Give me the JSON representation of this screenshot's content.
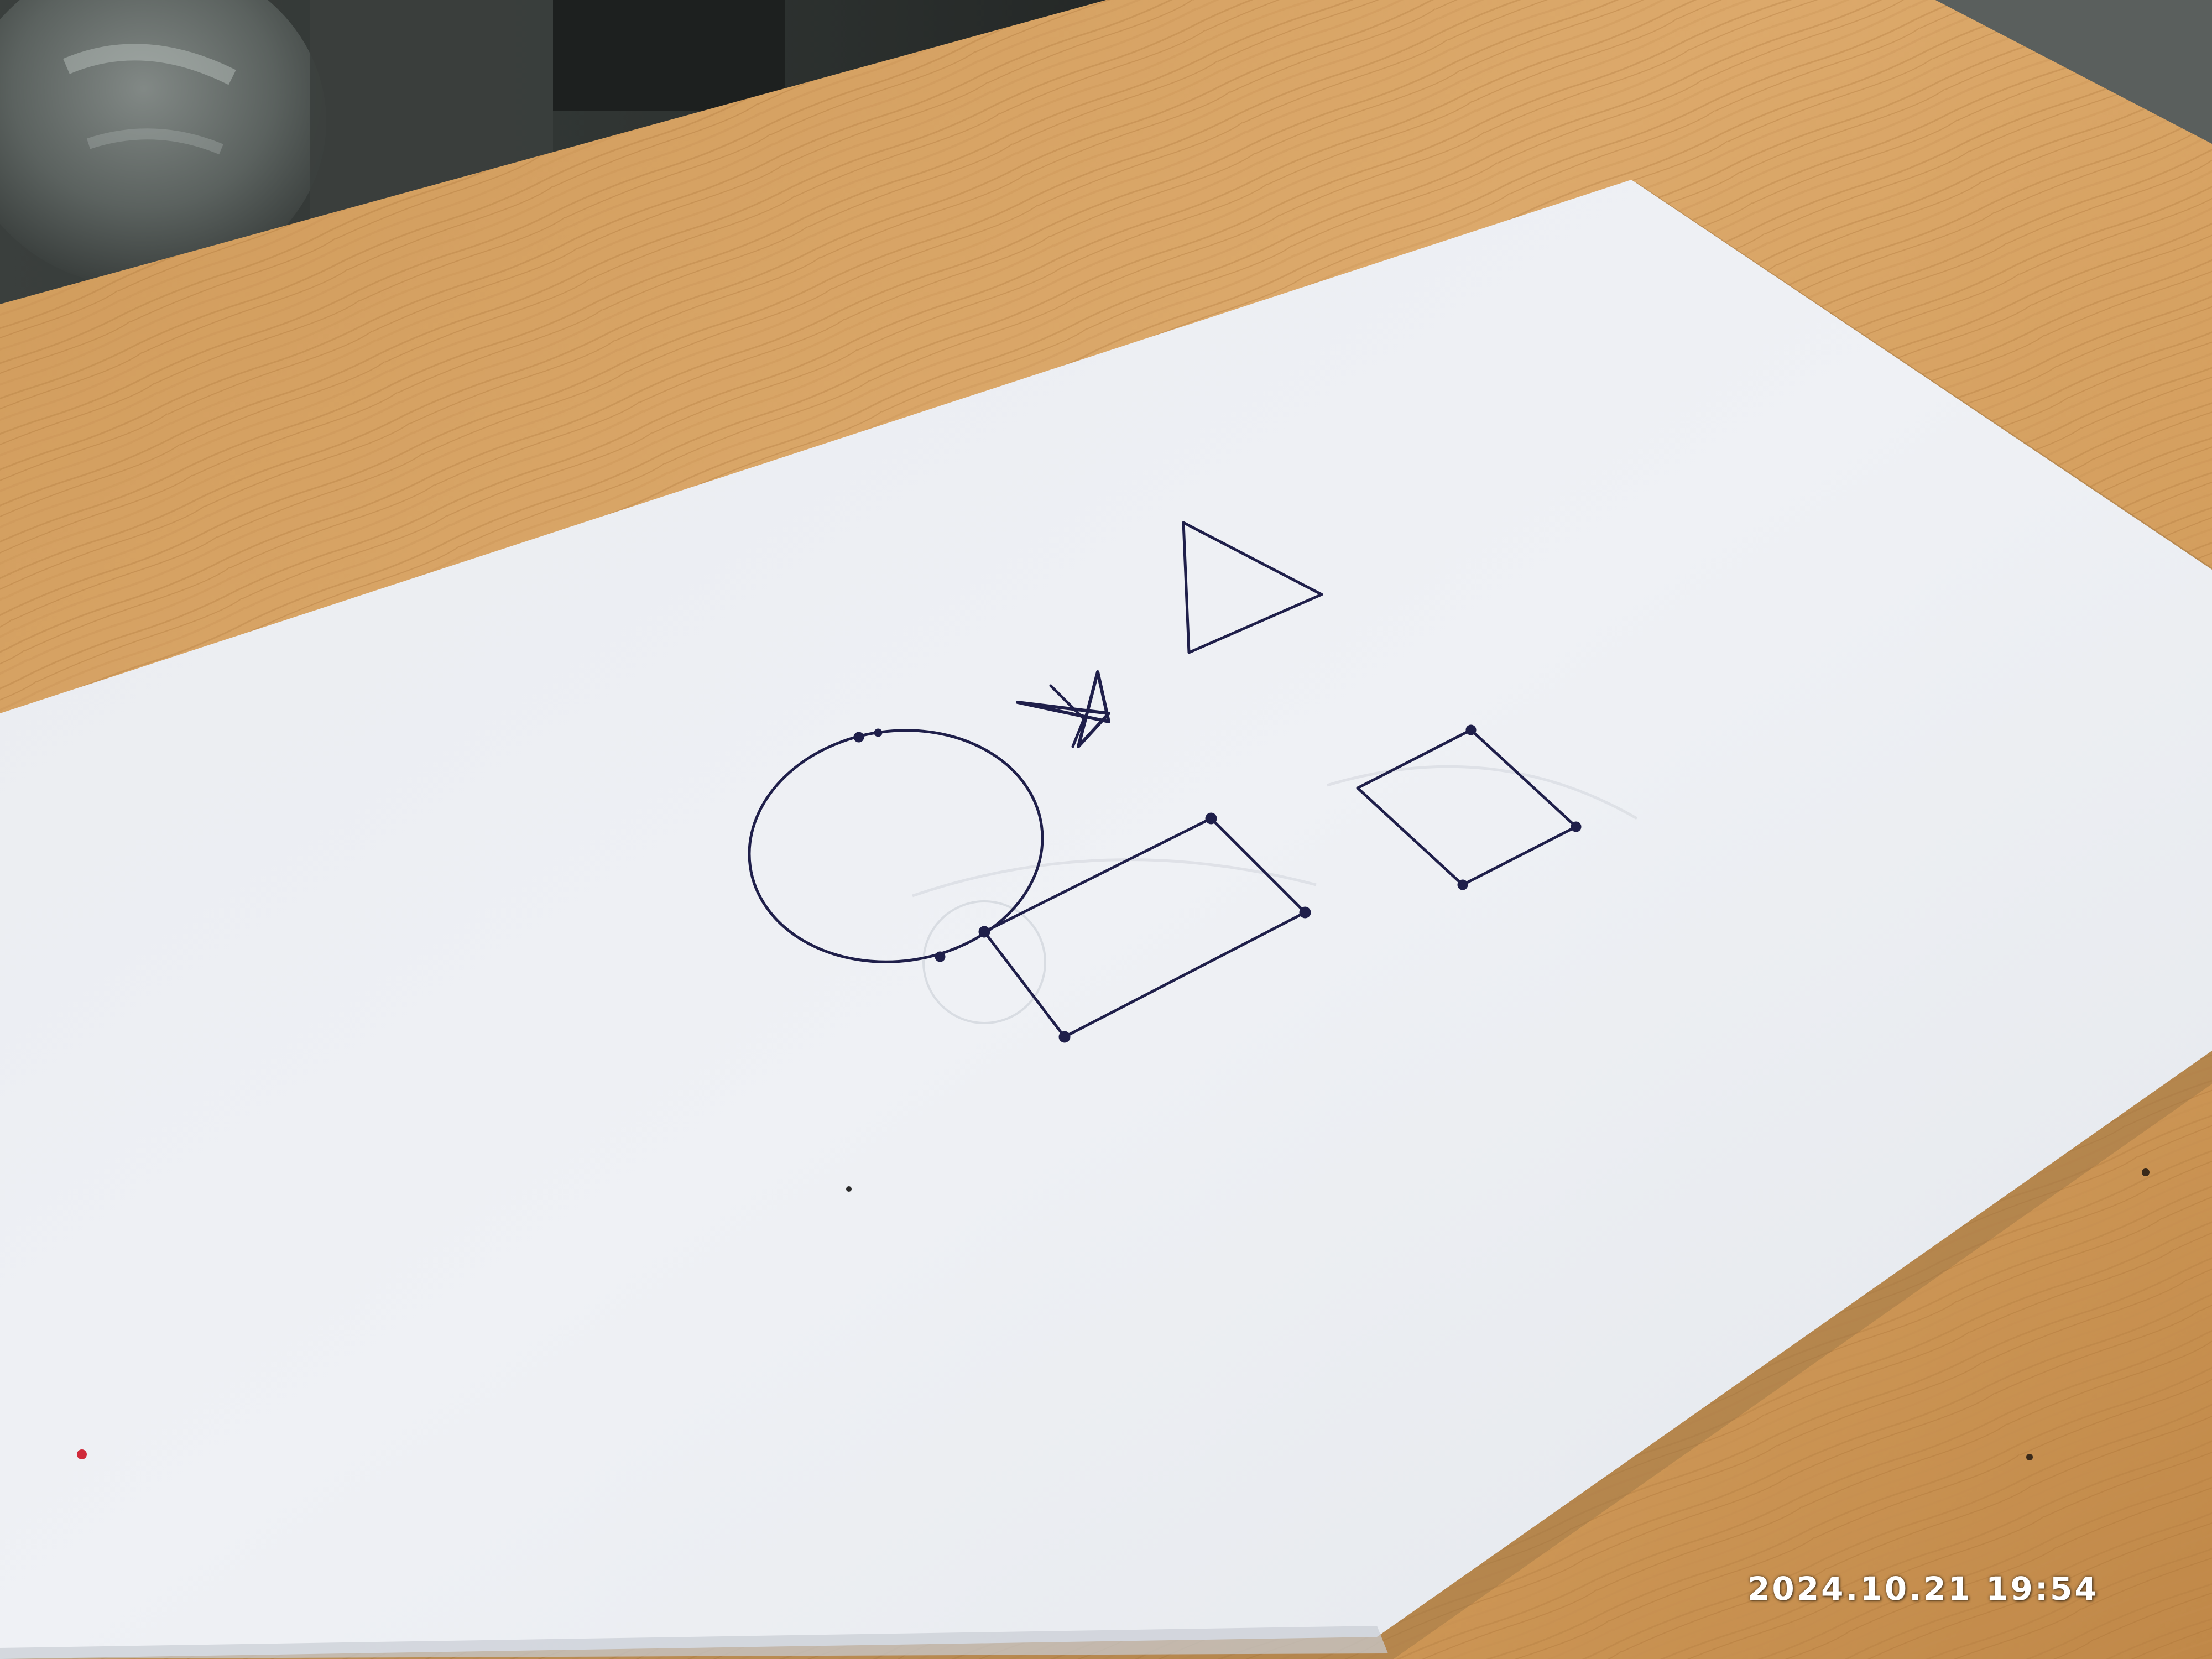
{
  "scene": {
    "description_objects": [
      "wooden-table",
      "paper-sheet",
      "pen-drawing"
    ],
    "colors": {
      "wood_light": "#d9a767",
      "wood_dark": "#b27c40",
      "wood_grain": "#a56f37",
      "paper": "#eef0f4",
      "paper_shadow": "#c9cdd4",
      "ink": "#1f1f4a",
      "background_dark": "#2a2d2c",
      "bottle_glass": "#6f7673"
    },
    "shapes": [
      "circle",
      "star",
      "triangle",
      "rectangle",
      "square"
    ]
  },
  "overlay": {
    "timestamp": "2024.10.21 19:54"
  }
}
